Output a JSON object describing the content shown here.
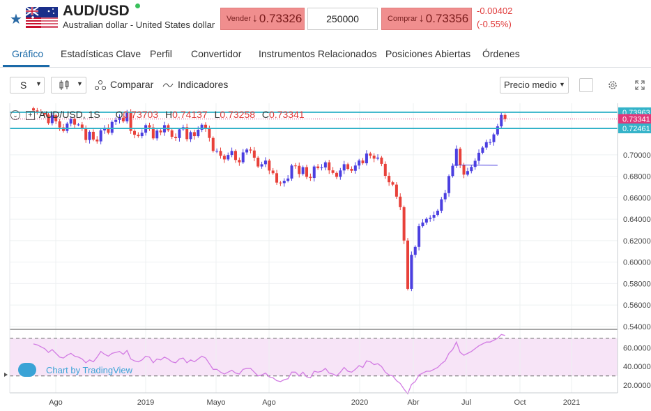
{
  "header": {
    "symbol": "AUD/USD",
    "description": "Australian dollar - United States dollar",
    "sell": {
      "label": "Vender",
      "arrow": "↓",
      "price": "0.73326"
    },
    "quantity": "250000",
    "buy": {
      "label": "Comprar",
      "arrow": "↓",
      "price": "0.73356"
    },
    "change": "-0.00402",
    "change_pct": "(-0.55%)"
  },
  "tabs": [
    "Gráfico",
    "Estadísticas Clave",
    "Perfil",
    "Convertidor",
    "Instrumentos Relacionados",
    "Posiciones Abiertas",
    "Órdenes"
  ],
  "toolbar": {
    "interval": "S",
    "compare": "Comparar",
    "indicators": "Indicadores",
    "price_mode": "Precio medio"
  },
  "legend": {
    "title": "AUD/USD, 1S",
    "o_key": "O",
    "o": "0.73703",
    "h_key": "H",
    "h": "0.74137",
    "l_key": "L",
    "l": "0.73258",
    "c_key": "C",
    "c": "0.73341"
  },
  "watermark": "Chart by TradingView",
  "colors": {
    "up": "#4b3fe0",
    "down": "#e8413a",
    "hline": "#34b3c9",
    "rsi": "#d27be3",
    "rsi_band": "#f7e4f7",
    "last_price": "#e0377a",
    "accent": "#1b6aa8"
  },
  "chart_data": {
    "type": "candlestick",
    "price_axis_ticks": [
      "0.70000",
      "0.68000",
      "0.66000",
      "0.64000",
      "0.62000",
      "0.60000",
      "0.58000",
      "0.56000",
      "0.54000"
    ],
    "price_range": [
      0.538,
      0.748
    ],
    "price_labels": {
      "upper": "0.73963",
      "last": "0.73341",
      "lower": "0.72461"
    },
    "rsi_ticks": [
      "60.0000",
      "40.0000",
      "20.0000"
    ],
    "rsi_range": [
      12,
      78
    ],
    "rsi_bands": [
      70,
      30
    ],
    "time_labels": [
      "Ago",
      "2019",
      "Mayo",
      "Ago",
      "2020",
      "Abr",
      "Jul",
      "Oct",
      "2021"
    ],
    "time_label_positions": [
      0.05,
      0.55,
      2.25,
      3.55,
      5.45,
      6.75,
      7.85,
      8.95,
      10.15
    ],
    "closes": [
      0.7413,
      0.7396,
      0.7392,
      0.7375,
      0.7295,
      0.7368,
      0.7312,
      0.7255,
      0.7222,
      0.7291,
      0.7335,
      0.7281,
      0.7282,
      0.7243,
      0.7138,
      0.7214,
      0.7142,
      0.7125,
      0.7228,
      0.7253,
      0.7205,
      0.7306,
      0.7325,
      0.7346,
      0.7312,
      0.7395,
      0.7222,
      0.7187,
      0.7174,
      0.7206,
      0.7276,
      0.7255,
      0.7153,
      0.7226,
      0.7209,
      0.7276,
      0.7228,
      0.7168,
      0.7156,
      0.7237,
      0.7257,
      0.7146,
      0.7211,
      0.7174,
      0.7233,
      0.728,
      0.7241,
      0.7157,
      0.7036,
      0.7036,
      0.6991,
      0.6957,
      0.6998,
      0.7036,
      0.6952,
      0.693,
      0.7022,
      0.7049,
      0.704,
      0.6973,
      0.6891,
      0.6912,
      0.6946,
      0.6853,
      0.6828,
      0.6741,
      0.6736,
      0.6758,
      0.6779,
      0.69,
      0.6897,
      0.6821,
      0.6885,
      0.6794,
      0.6784,
      0.6891,
      0.6875,
      0.6882,
      0.693,
      0.6855,
      0.6831,
      0.6794,
      0.6854,
      0.6912,
      0.6869,
      0.6851,
      0.69,
      0.6947,
      0.6921,
      0.7012,
      0.6992,
      0.6964,
      0.6974,
      0.6915,
      0.6804,
      0.6744,
      0.6722,
      0.661,
      0.6512,
      0.6201,
      0.5751,
      0.6068,
      0.6142,
      0.6335,
      0.6369,
      0.6403,
      0.6414,
      0.644,
      0.6479,
      0.6585,
      0.6643,
      0.6802,
      0.6897,
      0.7056,
      0.6902,
      0.6815,
      0.6848,
      0.6887,
      0.6944,
      0.7019,
      0.7067,
      0.7118,
      0.7118,
      0.719,
      0.7265,
      0.7371,
      0.7334
    ],
    "rsi_line": [
      64,
      63,
      61,
      59,
      55,
      58,
      54,
      50,
      49,
      52,
      54,
      51,
      50,
      48,
      44,
      47,
      45,
      50,
      56,
      53,
      51,
      54,
      55,
      56,
      53,
      57,
      48,
      46,
      45,
      47,
      51,
      50,
      44,
      48,
      47,
      50,
      48,
      45,
      44,
      48,
      49,
      44,
      47,
      45,
      48,
      51,
      49,
      43,
      37,
      37,
      34,
      32,
      34,
      36,
      33,
      32,
      37,
      38,
      38,
      34,
      30,
      31,
      33,
      29,
      28,
      25,
      24,
      26,
      27,
      34,
      34,
      30,
      34,
      29,
      28,
      35,
      34,
      35,
      38,
      33,
      32,
      30,
      34,
      39,
      35,
      34,
      37,
      41,
      39,
      46,
      45,
      42,
      43,
      40,
      34,
      31,
      30,
      25,
      22,
      16,
      11,
      21,
      24,
      31,
      33,
      35,
      35,
      37,
      39,
      43,
      46,
      54,
      58,
      66,
      55,
      52,
      54,
      56,
      59,
      62,
      64,
      66,
      66,
      68,
      70,
      74,
      73
    ]
  }
}
